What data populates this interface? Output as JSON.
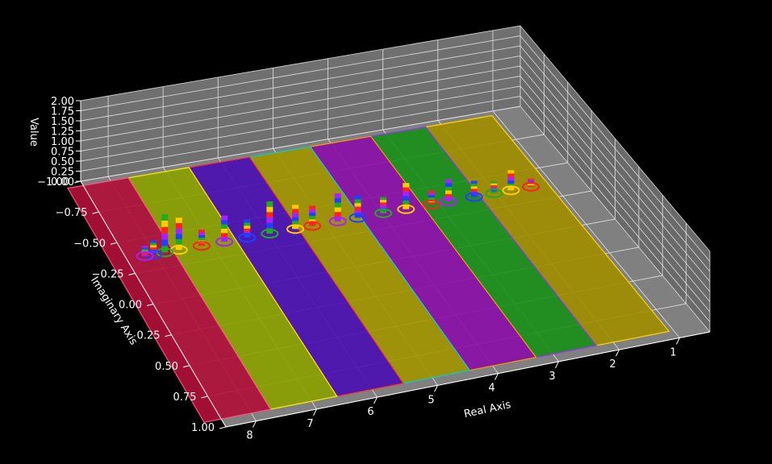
{
  "chart_data": {
    "type": "surface3d",
    "title": "",
    "xlabel": "Real Axis",
    "ylabel": "Imaginary Axis",
    "zlabel": "Value",
    "xlim": [
      0.5,
      8.5
    ],
    "ylim": [
      -1.0,
      1.0
    ],
    "zlim": [
      0.0,
      2.0
    ],
    "x_ticks": [
      "1",
      "2",
      "3",
      "4",
      "5",
      "6",
      "7",
      "8"
    ],
    "y_ticks": [
      "−1.00",
      "−0.75",
      "−0.50",
      "−0.25",
      "0.00",
      "0.25",
      "0.50",
      "0.75",
      "1.00"
    ],
    "z_ticks": [
      "0.00",
      "0.25",
      "0.50",
      "0.75",
      "1.00",
      "1.25",
      "1.50",
      "1.75",
      "2.00"
    ],
    "background": "#000000",
    "pane_color": "#808080",
    "grid": true,
    "bands": [
      {
        "name": "band-1",
        "x_range": [
          1.1,
          2.3
        ],
        "color": "#a08c00",
        "edge": "#ffd400"
      },
      {
        "name": "band-2",
        "x_range": [
          2.3,
          3.3
        ],
        "color": "#1a8f1a",
        "edge": "#9a30ff"
      },
      {
        "name": "band-3",
        "x_range": [
          3.3,
          4.4
        ],
        "color": "#8a0fa8",
        "edge": "#ff9900"
      },
      {
        "name": "band-4",
        "x_range": [
          4.4,
          5.5
        ],
        "color": "#a09400",
        "edge": "#00d0d0"
      },
      {
        "name": "band-5",
        "x_range": [
          5.5,
          6.6
        ],
        "color": "#4a10b0",
        "edge": "#ff3030"
      },
      {
        "name": "band-6",
        "x_range": [
          6.6,
          7.7
        ],
        "color": "#8aa000",
        "edge": "#ffee00"
      },
      {
        "name": "band-7",
        "x_range": [
          7.7,
          8.8
        ],
        "color": "#b0103a",
        "edge": "#ff5080"
      }
    ],
    "spike_line": {
      "y": -0.35,
      "z_base": 0.0
    },
    "spikes": [
      {
        "x": 1.4,
        "z": 0.25
      },
      {
        "x": 1.75,
        "z": 0.55
      },
      {
        "x": 2.05,
        "z": 0.35
      },
      {
        "x": 2.4,
        "z": 0.45
      },
      {
        "x": 2.85,
        "z": 0.6
      },
      {
        "x": 3.15,
        "z": 0.4
      },
      {
        "x": 3.6,
        "z": 0.7
      },
      {
        "x": 4.0,
        "z": 0.45
      },
      {
        "x": 4.45,
        "z": 0.6
      },
      {
        "x": 4.8,
        "z": 0.75
      },
      {
        "x": 5.25,
        "z": 0.55
      },
      {
        "x": 5.55,
        "z": 0.65
      },
      {
        "x": 6.0,
        "z": 0.85
      },
      {
        "x": 6.4,
        "z": 0.5
      },
      {
        "x": 6.8,
        "z": 0.7
      },
      {
        "x": 7.2,
        "z": 0.45
      },
      {
        "x": 7.6,
        "z": 0.85
      },
      {
        "x": 7.85,
        "z": 1.0
      },
      {
        "x": 8.05,
        "z": 0.4
      },
      {
        "x": 8.2,
        "z": 0.3
      }
    ]
  }
}
